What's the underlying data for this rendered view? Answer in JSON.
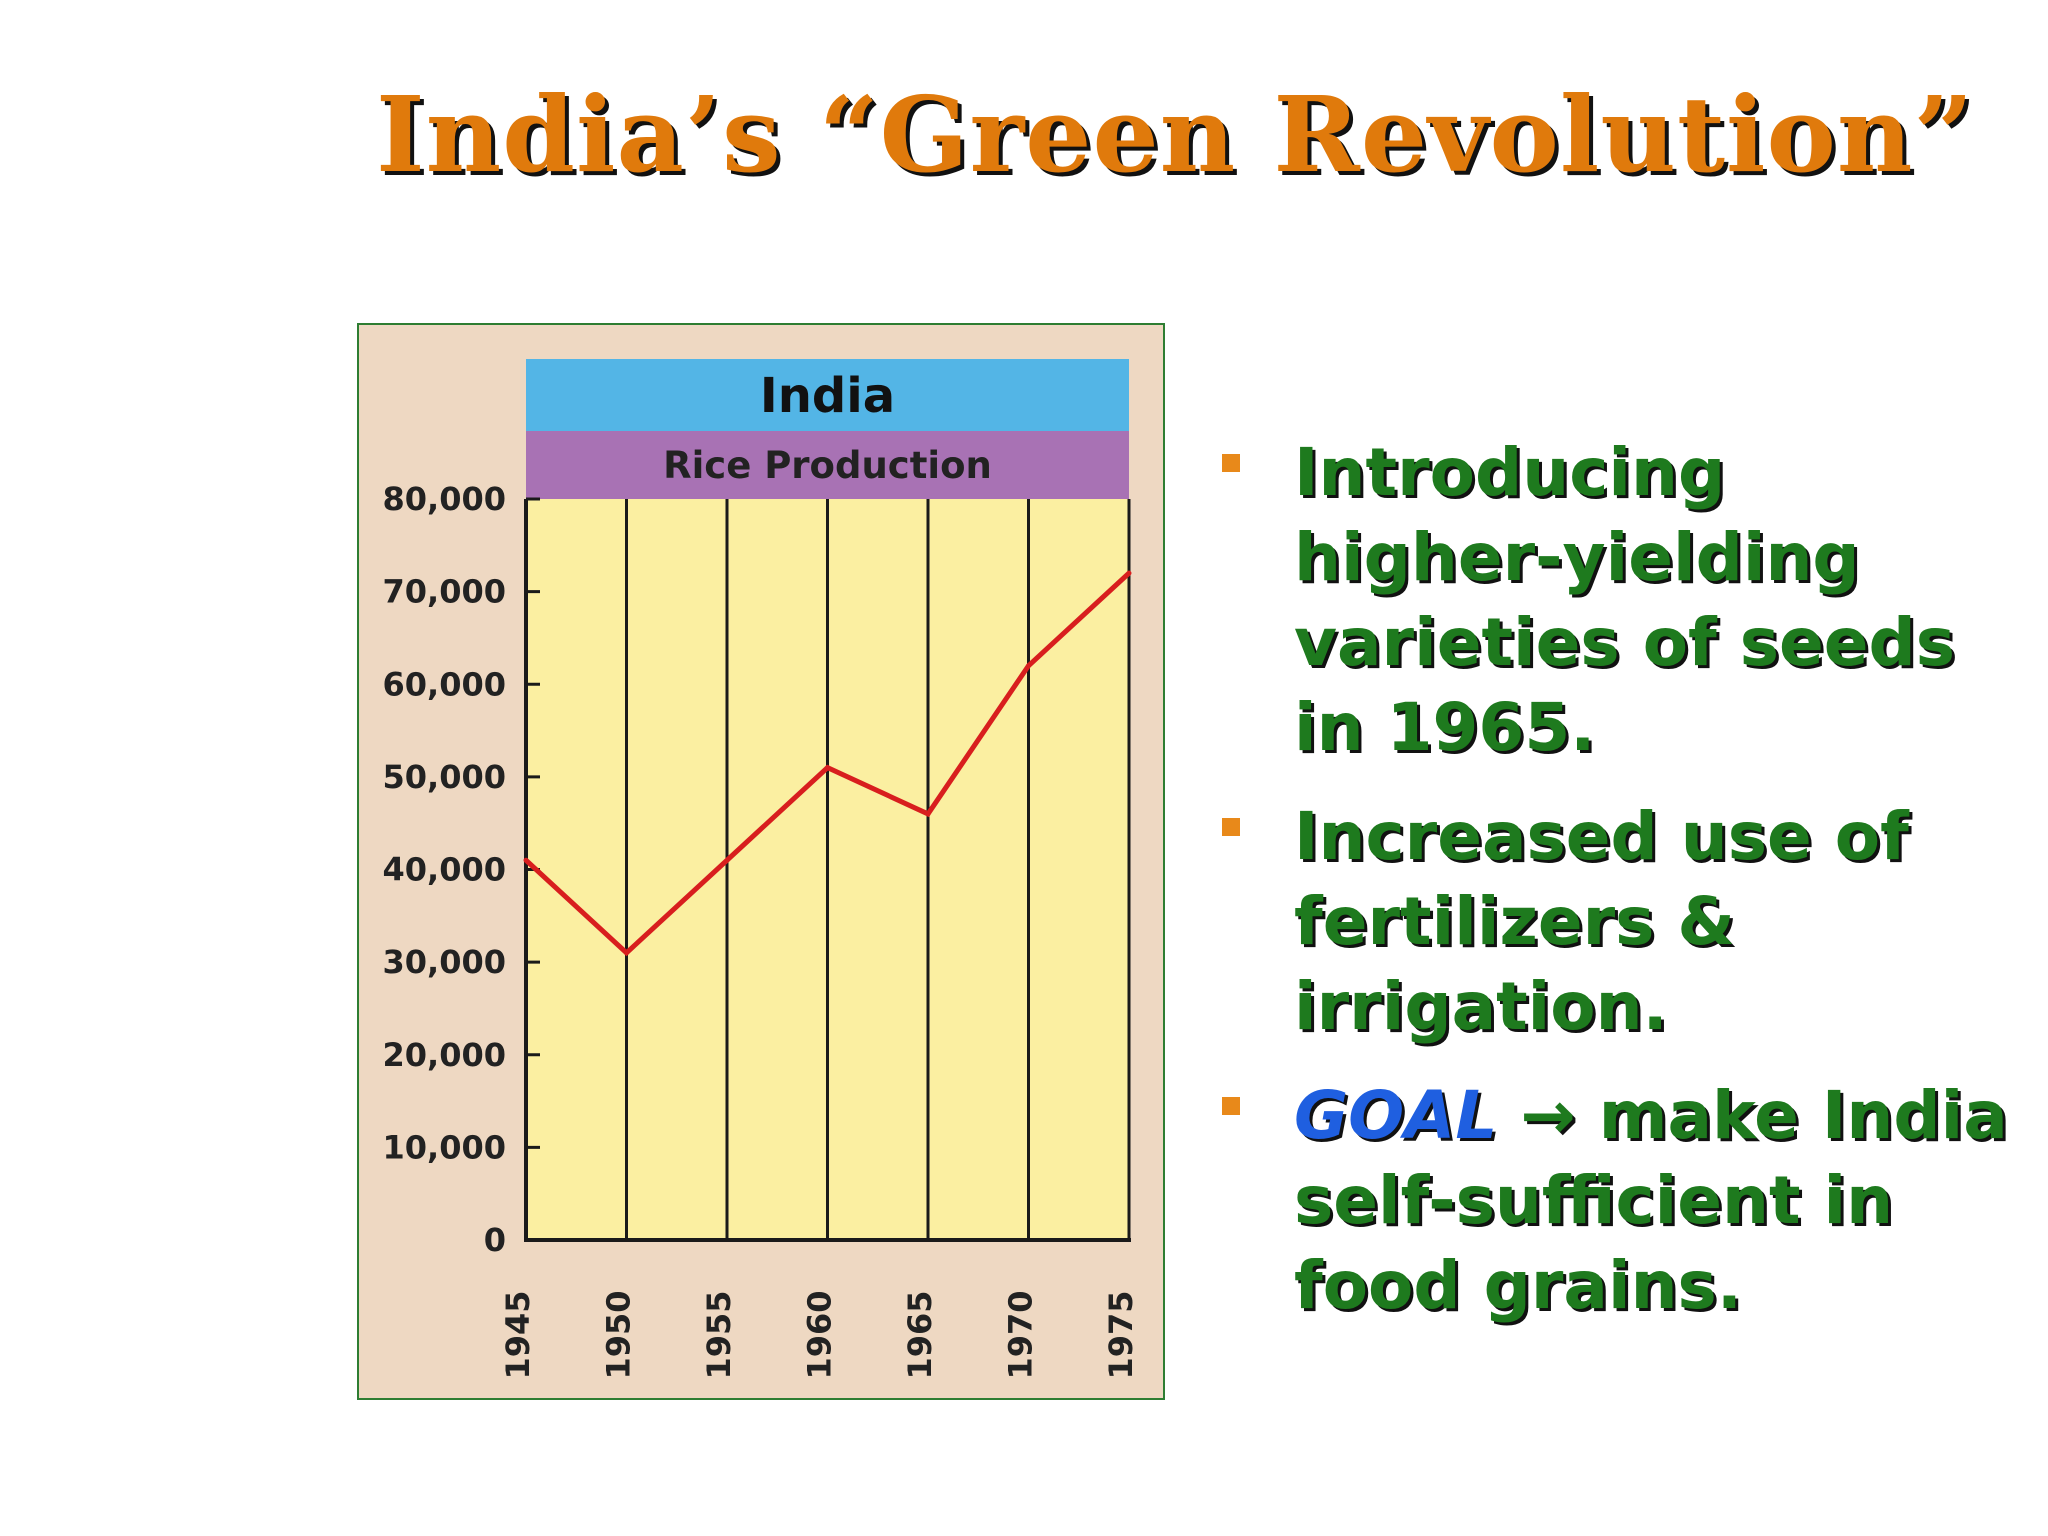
{
  "slide": {
    "title": "India’s “Green Revolution”",
    "title_color": "#e07a0c",
    "text_color": "#1e7a1e",
    "goal_color": "#1f5fe0",
    "bullet_marker_color": "#e8891a"
  },
  "bullets": [
    {
      "text": "Introducing higher-yielding varieties of seeds in 1965."
    },
    {
      "text": "Increased use of fertilizers & irrigation."
    },
    {
      "goal_label": "GOAL",
      "arrow": "→",
      "text": "make India self-sufficient in food grains."
    }
  ],
  "chart_data": {
    "type": "line",
    "title": "India",
    "subtitle": "Rice Production",
    "x": [
      1945,
      1950,
      1955,
      1960,
      1965,
      1970,
      1975
    ],
    "series": [
      {
        "values": [
          41000,
          31000,
          41000,
          51000,
          46000,
          62000,
          72000
        ]
      }
    ],
    "y_ticks": [
      0,
      10000,
      20000,
      30000,
      40000,
      50000,
      60000,
      70000,
      80000
    ],
    "y_tick_labels": [
      "0",
      "10,000",
      "20,000",
      "30,000",
      "40,000",
      "50,000",
      "60,000",
      "70,000",
      "80,000"
    ],
    "ylim": [
      0,
      80000
    ],
    "xlabel": "",
    "ylabel": "",
    "grid": "vertical",
    "colors": {
      "frame_background": "#eed8c2",
      "plot_background": "#fbefa1",
      "title_band": "#53b5e6",
      "subtitle_band": "#a872b4",
      "line": "#d81e1e",
      "axis": "#1a1a1a"
    }
  }
}
